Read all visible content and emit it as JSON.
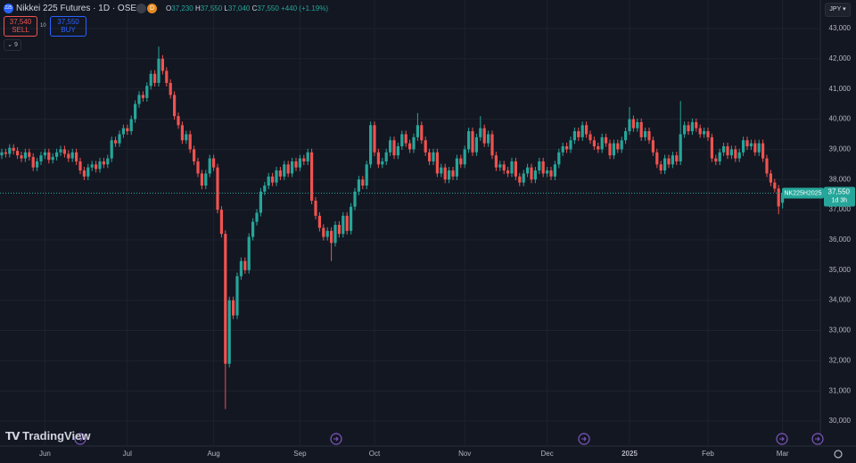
{
  "header": {
    "icon": "225",
    "symbol": "Nikkei 225 Futures · 1D · OSE",
    "badge": "D",
    "ohlc": [
      {
        "key": "O",
        "value": "37,230"
      },
      {
        "key": "H",
        "value": "37,550"
      },
      {
        "key": "L",
        "value": "37,040"
      },
      {
        "key": "C",
        "value": "37,550"
      }
    ],
    "change": "+440 (+1.19%)",
    "sell": {
      "price": "37,540",
      "label": "SELL"
    },
    "spread": "10",
    "buy": {
      "price": "37,550",
      "label": "BUY"
    },
    "indicators": "9",
    "currency": "JPY",
    "logo": "TradingView"
  },
  "chart_data": {
    "type": "candlestick",
    "up_color": "#26a69a",
    "down_color": "#ef5350",
    "grid": true,
    "ylim": [
      29174,
      43945
    ],
    "yticks": [
      {
        "value": 30000,
        "label": "30,000"
      },
      {
        "value": 31000,
        "label": "31,000"
      },
      {
        "value": 32000,
        "label": "32,000"
      },
      {
        "value": 33000,
        "label": "33,000"
      },
      {
        "value": 34000,
        "label": "34,000"
      },
      {
        "value": 35000,
        "label": "35,000"
      },
      {
        "value": 36000,
        "label": "36,000"
      },
      {
        "value": 37000,
        "label": "37,000"
      },
      {
        "value": 38000,
        "label": "38,000"
      },
      {
        "value": 39000,
        "label": "39,000"
      },
      {
        "value": 40000,
        "label": "40,000"
      },
      {
        "value": 41000,
        "label": "41,000"
      },
      {
        "value": 42000,
        "label": "42,000"
      },
      {
        "value": 43000,
        "label": "43,000"
      }
    ],
    "last_price": {
      "value": 37550,
      "label": "37,550"
    },
    "contract": "NK225H2025",
    "countdown": "1d 3h",
    "categories": [
      null,
      null,
      null,
      null,
      null,
      null,
      null,
      null,
      null,
      null,
      null,
      "Jun",
      null,
      null,
      null,
      null,
      null,
      null,
      null,
      null,
      null,
      null,
      null,
      null,
      null,
      null,
      null,
      null,
      null,
      null,
      null,
      null,
      "Jul",
      null,
      null,
      null,
      null,
      null,
      null,
      null,
      null,
      null,
      null,
      null,
      null,
      null,
      null,
      null,
      null,
      null,
      null,
      null,
      null,
      null,
      "Aug",
      null,
      null,
      null,
      null,
      null,
      null,
      null,
      null,
      null,
      null,
      null,
      null,
      null,
      null,
      null,
      null,
      null,
      null,
      null,
      null,
      null,
      "Sep",
      null,
      null,
      null,
      null,
      null,
      null,
      null,
      null,
      null,
      null,
      null,
      null,
      null,
      null,
      null,
      null,
      null,
      null,
      "Oct",
      null,
      null,
      null,
      null,
      null,
      null,
      null,
      null,
      null,
      null,
      null,
      null,
      null,
      null,
      null,
      null,
      null,
      null,
      null,
      null,
      null,
      null,
      "Nov",
      null,
      null,
      null,
      null,
      null,
      null,
      null,
      null,
      null,
      null,
      null,
      null,
      null,
      null,
      null,
      null,
      null,
      null,
      null,
      null,
      "Dec",
      null,
      null,
      null,
      null,
      null,
      null,
      null,
      null,
      null,
      null,
      null,
      null,
      null,
      null,
      null,
      null,
      null,
      null,
      null,
      null,
      "2025",
      null,
      null,
      null,
      null,
      null,
      null,
      null,
      null,
      null,
      null,
      null,
      null,
      null,
      null,
      null,
      null,
      null,
      null,
      null,
      "Feb",
      null,
      null,
      null,
      null,
      null,
      null,
      null,
      null,
      null,
      null,
      null,
      null,
      null,
      null,
      null,
      null,
      null,
      null,
      "Mar"
    ],
    "open": [
      38800,
      38900,
      38850,
      39050,
      38950,
      38800,
      38700,
      38900,
      38750,
      38400,
      38600,
      38800,
      38900,
      38650,
      38750,
      38900,
      39000,
      38850,
      38700,
      38900,
      38600,
      38300,
      38100,
      38400,
      38500,
      38350,
      38600,
      38500,
      38700,
      39300,
      39200,
      39500,
      39700,
      39600,
      40000,
      40500,
      40800,
      40700,
      41100,
      41500,
      41200,
      42000,
      41600,
      41200,
      40800,
      40100,
      39800,
      39300,
      39500,
      39000,
      38600,
      38200,
      37800,
      38200,
      38700,
      38400,
      37000,
      36200,
      31900,
      34000,
      33500,
      34800,
      35300,
      35000,
      36100,
      36600,
      36900,
      37600,
      37800,
      38100,
      37900,
      38300,
      38100,
      38500,
      38200,
      38600,
      38400,
      38700,
      38600,
      38900,
      37300,
      36800,
      36400,
      36100,
      36300,
      35900,
      36500,
      36200,
      36800,
      36300,
      37100,
      37600,
      38000,
      37800,
      38500,
      39800,
      38900,
      38500,
      38600,
      38900,
      39300,
      38800,
      39100,
      39500,
      39200,
      39000,
      39400,
      39800,
      39300,
      38900,
      38600,
      38900,
      38200,
      38400,
      38000,
      38300,
      38100,
      38700,
      38500,
      39000,
      39600,
      38900,
      39400,
      39700,
      39200,
      39500,
      38800,
      38400,
      38500,
      38300,
      38200,
      38600,
      38100,
      37900,
      38200,
      38400,
      38000,
      38300,
      38600,
      38200,
      38300,
      38100,
      38500,
      38900,
      39100,
      39000,
      39300,
      39600,
      39400,
      39800,
      39500,
      39300,
      39100,
      39000,
      39400,
      39200,
      38800,
      39200,
      39000,
      39300,
      39600,
      40000,
      39700,
      39900,
      39400,
      39600,
      39300,
      38900,
      38500,
      38300,
      38700,
      38500,
      38800,
      38600,
      39500,
      39800,
      39600,
      39900,
      39700,
      39500,
      39600,
      39400,
      38700,
      38600,
      38900,
      39100,
      38800,
      39000,
      38700,
      38900,
      39300,
      39100,
      39200,
      38900,
      39200,
      38700,
      38200,
      37900,
      37700,
      37230
    ],
    "high": [
      39020,
      39020,
      39170,
      39170,
      39070,
      38920,
      39020,
      39020,
      38870,
      38720,
      38920,
      39020,
      39020,
      38870,
      39020,
      39120,
      39120,
      38970,
      39020,
      39020,
      38720,
      38420,
      38520,
      38620,
      38620,
      38720,
      38720,
      38820,
      39420,
      39420,
      39620,
      39820,
      39820,
      40120,
      40620,
      40920,
      40920,
      41220,
      41620,
      41620,
      42400,
      42120,
      41720,
      41320,
      40920,
      40220,
      39920,
      39620,
      39620,
      39120,
      38720,
      38320,
      38320,
      38820,
      38820,
      38520,
      37120,
      36320,
      34120,
      34120,
      34920,
      35420,
      35420,
      36220,
      36720,
      37020,
      37720,
      37920,
      38220,
      38220,
      38420,
      38420,
      38620,
      38620,
      38720,
      38720,
      38820,
      38820,
      39020,
      39020,
      37420,
      36920,
      36520,
      36420,
      36420,
      36620,
      36620,
      36920,
      36920,
      37220,
      37720,
      38120,
      38120,
      38620,
      39920,
      39920,
      39020,
      38720,
      39020,
      39420,
      39420,
      39220,
      39620,
      39620,
      39320,
      39520,
      40200,
      39920,
      39420,
      39020,
      39020,
      39020,
      38520,
      38520,
      38420,
      38420,
      38820,
      38820,
      39120,
      39720,
      39720,
      39520,
      40100,
      39820,
      39620,
      39620,
      38920,
      38620,
      38620,
      38420,
      38720,
      38720,
      38220,
      38320,
      38520,
      38520,
      38420,
      38720,
      38720,
      38420,
      38420,
      38620,
      39020,
      39220,
      39220,
      39420,
      39720,
      39720,
      39920,
      39920,
      39620,
      39420,
      39220,
      39520,
      39520,
      39320,
      39320,
      39320,
      39420,
      39720,
      40400,
      40120,
      40020,
      40020,
      39720,
      39720,
      39420,
      39020,
      38620,
      38820,
      38820,
      38920,
      38920,
      40600,
      39920,
      39920,
      40020,
      40020,
      39820,
      39720,
      39720,
      39520,
      38820,
      39020,
      39220,
      39220,
      39120,
      39120,
      39020,
      39420,
      39420,
      39320,
      39320,
      39320,
      39320,
      38820,
      38320,
      38020,
      37820,
      37550
    ],
    "low": [
      38680,
      38730,
      38730,
      38830,
      38680,
      38580,
      38580,
      38630,
      38280,
      38280,
      38480,
      38680,
      38530,
      38530,
      38630,
      38780,
      38730,
      38580,
      38580,
      38480,
      38180,
      37980,
      37980,
      38280,
      38230,
      38230,
      38380,
      38380,
      38580,
      39080,
      39080,
      39380,
      39480,
      39480,
      39880,
      40380,
      40580,
      40580,
      40980,
      41080,
      41080,
      41480,
      41080,
      40680,
      39980,
      39680,
      39180,
      39180,
      38880,
      38480,
      38080,
      37680,
      37680,
      38080,
      38280,
      36880,
      36080,
      30400,
      31780,
      33380,
      33380,
      34680,
      34880,
      34880,
      35980,
      36480,
      36780,
      37480,
      37680,
      37780,
      37780,
      37980,
      37980,
      38080,
      38080,
      38280,
      38280,
      38480,
      38480,
      37180,
      36680,
      36280,
      35980,
      35980,
      35300,
      35780,
      36080,
      36080,
      36180,
      36180,
      36980,
      37480,
      37680,
      37680,
      38380,
      38780,
      38380,
      38380,
      38480,
      38780,
      38680,
      38680,
      38980,
      39080,
      38880,
      38880,
      39280,
      39180,
      38780,
      38480,
      38480,
      38080,
      38080,
      37880,
      37880,
      37980,
      37980,
      38380,
      38380,
      38880,
      38780,
      38780,
      39280,
      39080,
      39080,
      38680,
      38280,
      38280,
      38180,
      38080,
      38080,
      37980,
      37780,
      37780,
      38080,
      37880,
      37880,
      38180,
      38080,
      38080,
      37980,
      37980,
      38380,
      38780,
      38880,
      38880,
      39180,
      39280,
      39280,
      39380,
      39180,
      38980,
      38880,
      38880,
      39080,
      38680,
      38680,
      38880,
      38880,
      39180,
      39480,
      39580,
      39580,
      39280,
      39280,
      39180,
      38780,
      38380,
      38180,
      38180,
      38380,
      38380,
      38480,
      38480,
      39380,
      39480,
      39480,
      39580,
      39380,
      39380,
      39280,
      38580,
      38480,
      38480,
      38780,
      38680,
      38680,
      38580,
      38580,
      38780,
      38980,
      38980,
      38780,
      38780,
      38580,
      38080,
      37780,
      37580,
      36850,
      37040
    ],
    "close": [
      38900,
      38850,
      39050,
      38950,
      38800,
      38700,
      38900,
      38750,
      38400,
      38600,
      38800,
      38900,
      38650,
      38750,
      38900,
      39000,
      38850,
      38700,
      38900,
      38600,
      38300,
      38100,
      38400,
      38500,
      38350,
      38600,
      38500,
      38700,
      39300,
      39200,
      39500,
      39700,
      39600,
      40000,
      40500,
      40800,
      40700,
      41100,
      41500,
      41200,
      42000,
      41600,
      41200,
      40800,
      40100,
      39800,
      39300,
      39500,
      39000,
      38600,
      38200,
      37800,
      38200,
      38700,
      38400,
      37000,
      36200,
      31900,
      34000,
      33500,
      34800,
      35300,
      35000,
      36100,
      36600,
      36900,
      37600,
      37800,
      38100,
      37900,
      38300,
      38100,
      38500,
      38200,
      38600,
      38400,
      38700,
      38600,
      38900,
      37300,
      36800,
      36400,
      36100,
      36300,
      35900,
      36500,
      36200,
      36800,
      36300,
      37100,
      37600,
      38000,
      37800,
      38500,
      39800,
      38900,
      38500,
      38600,
      38900,
      39300,
      38800,
      39100,
      39500,
      39200,
      39000,
      39400,
      39800,
      39300,
      38900,
      38600,
      38900,
      38200,
      38400,
      38000,
      38300,
      38100,
      38700,
      38500,
      39000,
      39600,
      38900,
      39400,
      39700,
      39200,
      39500,
      38800,
      38400,
      38500,
      38300,
      38200,
      38600,
      38100,
      37900,
      38200,
      38400,
      38000,
      38300,
      38600,
      38200,
      38300,
      38100,
      38500,
      38900,
      39100,
      39000,
      39300,
      39600,
      39400,
      39800,
      39500,
      39300,
      39100,
      39000,
      39400,
      39200,
      38800,
      39200,
      39000,
      39300,
      39600,
      40000,
      39700,
      39900,
      39400,
      39600,
      39300,
      38900,
      38500,
      38300,
      38700,
      38500,
      38800,
      38600,
      39500,
      39800,
      39600,
      39900,
      39700,
      39500,
      39600,
      39400,
      38700,
      38600,
      38900,
      39100,
      38800,
      39000,
      38700,
      38900,
      39300,
      39100,
      39200,
      38900,
      39200,
      38700,
      38200,
      37900,
      37700,
      37110,
      37550
    ]
  }
}
